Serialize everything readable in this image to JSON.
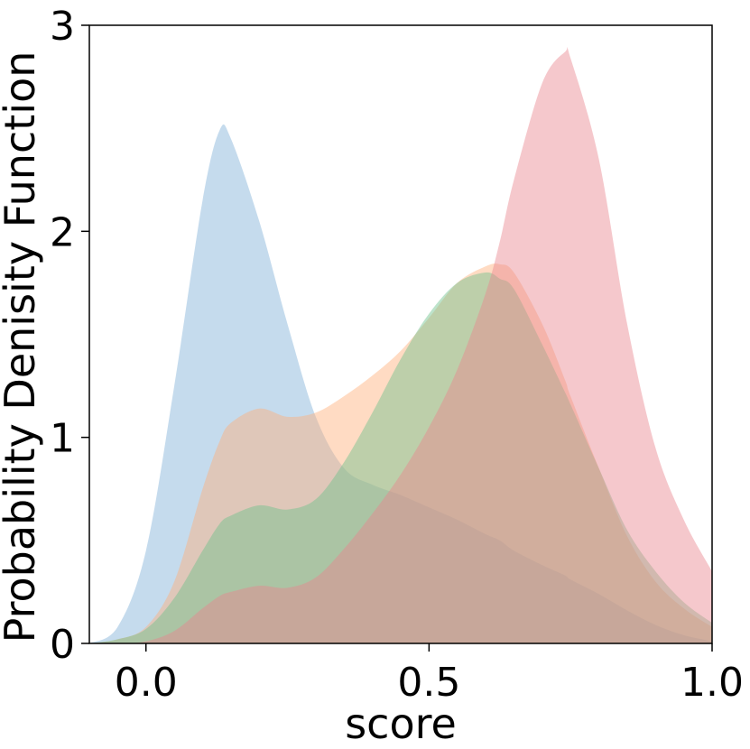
{
  "chart_data": {
    "type": "area",
    "title": "",
    "xlabel": "score",
    "ylabel": "Probability Denisity Function",
    "xlim": [
      -0.1,
      1.0
    ],
    "ylim": [
      0,
      3
    ],
    "xticks": [
      0.0,
      0.5,
      1.0
    ],
    "xtick_labels": [
      "0.0",
      "0.5",
      "1.0"
    ],
    "yticks": [
      0,
      1,
      2,
      3
    ],
    "ytick_labels": [
      "0",
      "1",
      "2",
      "3"
    ],
    "grid": false,
    "legend": "none",
    "fill_opacity": 0.45,
    "x": [
      -0.1,
      -0.05,
      0.0,
      0.05,
      0.1,
      0.13,
      0.15,
      0.2,
      0.25,
      0.3,
      0.35,
      0.4,
      0.45,
      0.5,
      0.55,
      0.6,
      0.625,
      0.65,
      0.7,
      0.74,
      0.75,
      0.8,
      0.85,
      0.9,
      0.95,
      1.0
    ],
    "series": [
      {
        "color": "#7fb0d6",
        "values": [
          0.0,
          0.08,
          0.45,
          1.25,
          2.15,
          2.49,
          2.45,
          2.05,
          1.55,
          1.1,
          0.85,
          0.77,
          0.72,
          0.66,
          0.6,
          0.53,
          0.5,
          0.45,
          0.38,
          0.33,
          0.31,
          0.24,
          0.16,
          0.09,
          0.04,
          0.01
        ]
      },
      {
        "color": "#ffb079",
        "values": [
          0.0,
          0.02,
          0.08,
          0.3,
          0.75,
          0.98,
          1.07,
          1.14,
          1.1,
          1.12,
          1.2,
          1.3,
          1.42,
          1.58,
          1.75,
          1.83,
          1.84,
          1.8,
          1.55,
          1.28,
          1.2,
          0.85,
          0.52,
          0.3,
          0.17,
          0.08
        ]
      },
      {
        "color": "#6cc08b",
        "values": [
          0.0,
          0.02,
          0.07,
          0.22,
          0.45,
          0.58,
          0.62,
          0.67,
          0.65,
          0.7,
          0.88,
          1.12,
          1.38,
          1.6,
          1.75,
          1.8,
          1.77,
          1.72,
          1.45,
          1.22,
          1.16,
          0.85,
          0.55,
          0.35,
          0.2,
          0.1
        ]
      },
      {
        "color": "#e8868e",
        "values": [
          0.0,
          0.0,
          0.01,
          0.06,
          0.17,
          0.23,
          0.25,
          0.28,
          0.27,
          0.32,
          0.46,
          0.63,
          0.82,
          1.05,
          1.33,
          1.7,
          1.95,
          2.25,
          2.72,
          2.87,
          2.84,
          2.35,
          1.55,
          0.95,
          0.6,
          0.35
        ]
      }
    ]
  }
}
